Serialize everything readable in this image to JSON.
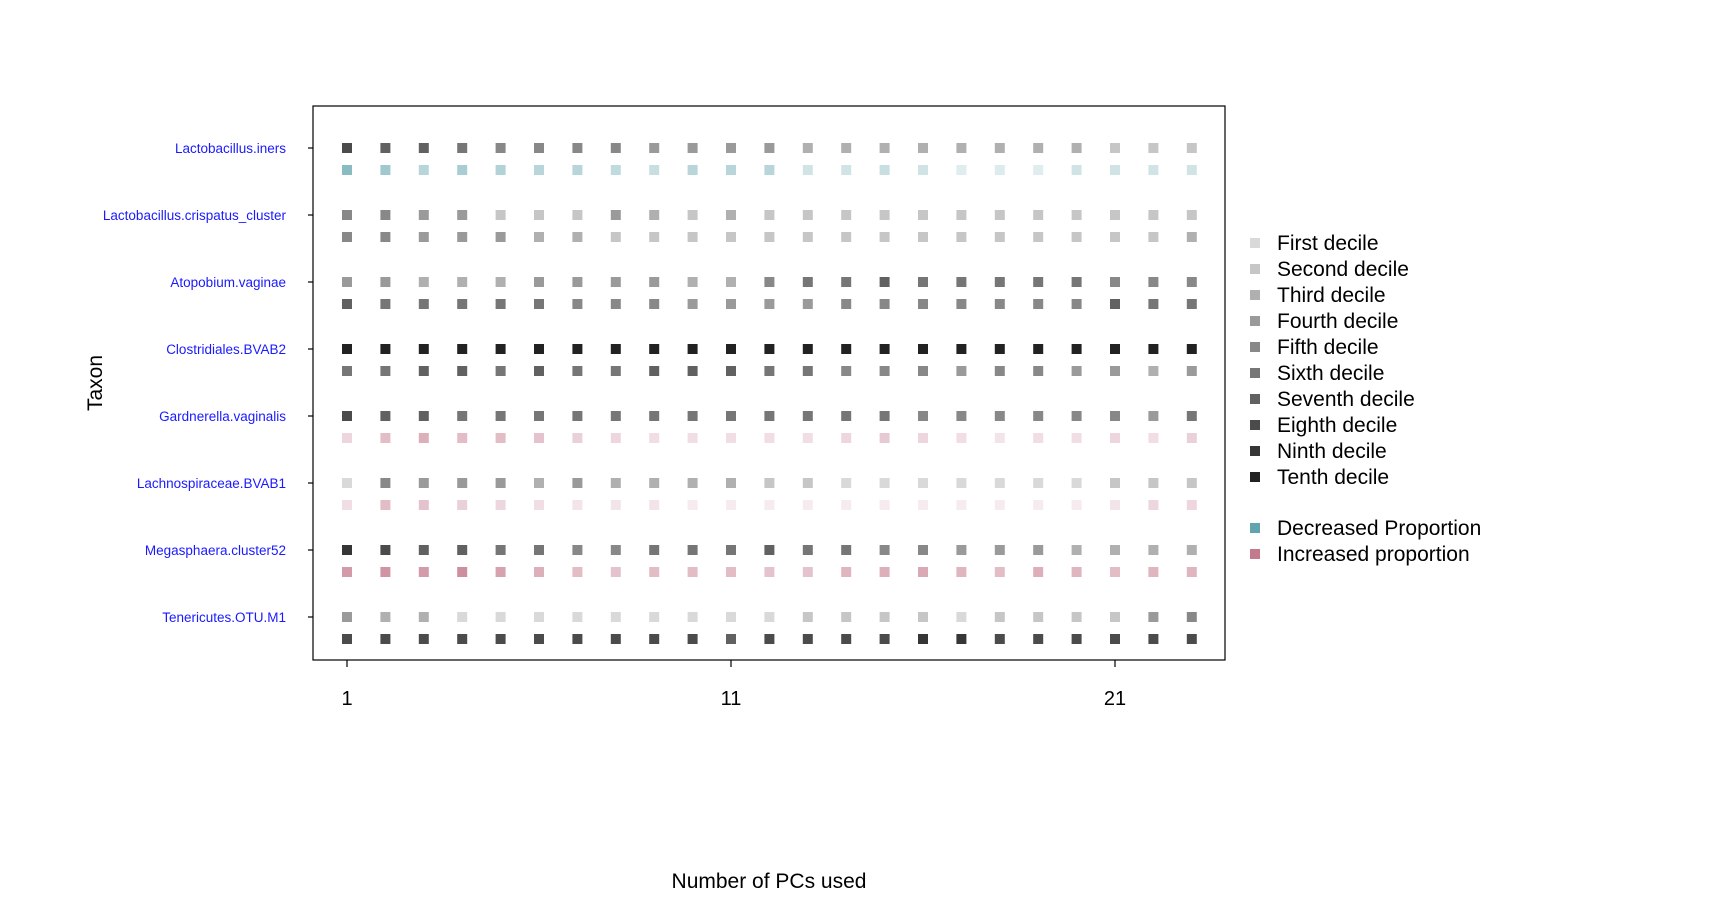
{
  "chart_data": {
    "type": "heatmap",
    "title": "",
    "xlabel": "Number of PCs used",
    "ylabel": "Taxon",
    "x": [
      1,
      2,
      3,
      4,
      5,
      6,
      7,
      8,
      9,
      10,
      11,
      12,
      13,
      14,
      15,
      16,
      17,
      18,
      19,
      20,
      21,
      22,
      23
    ],
    "x_ticks": [
      1,
      11,
      21
    ],
    "taxa": [
      "Lactobacillus.iners",
      "Lactobacillus.crispatus_cluster",
      "Atopobium.vaginae",
      "Clostridiales.BVAB2",
      "Gardnerella.vaginalis",
      "Lachnospiraceae.BVAB1",
      "Megasphaera.cluster52",
      "Tenericutes.OTU.M1"
    ],
    "abundance_deciles": [
      [
        8,
        7,
        7,
        6,
        5,
        5,
        5,
        5,
        4,
        4,
        4,
        4,
        3,
        3,
        3,
        3,
        3,
        3,
        3,
        3,
        2,
        2,
        2
      ],
      [
        5,
        5,
        4,
        4,
        2,
        2,
        2,
        4,
        3,
        2,
        3,
        2,
        2,
        2,
        2,
        2,
        2,
        2,
        2,
        2,
        2,
        2,
        2
      ],
      [
        4,
        4,
        3,
        3,
        3,
        4,
        4,
        4,
        4,
        3,
        3,
        5,
        6,
        6,
        7,
        6,
        6,
        6,
        6,
        6,
        5,
        5,
        5
      ],
      [
        10,
        10,
        10,
        10,
        10,
        10,
        10,
        10,
        10,
        10,
        10,
        10,
        10,
        10,
        10,
        10,
        10,
        10,
        10,
        10,
        10,
        10,
        10
      ],
      [
        8,
        7,
        7,
        6,
        6,
        6,
        6,
        6,
        6,
        6,
        6,
        6,
        6,
        6,
        6,
        5,
        5,
        5,
        5,
        5,
        5,
        4,
        6
      ],
      [
        1,
        5,
        4,
        4,
        4,
        3,
        4,
        3,
        3,
        3,
        3,
        2,
        2,
        1,
        1,
        1,
        1,
        1,
        1,
        1,
        2,
        2,
        2
      ],
      [
        9,
        8,
        7,
        7,
        6,
        6,
        5,
        5,
        6,
        6,
        6,
        7,
        6,
        6,
        5,
        5,
        4,
        4,
        4,
        3,
        3,
        3,
        3
      ],
      [
        4,
        3,
        3,
        1,
        1,
        1,
        1,
        1,
        1,
        1,
        1,
        1,
        2,
        2,
        2,
        2,
        1,
        2,
        2,
        2,
        2,
        4,
        5
      ]
    ],
    "proportion_change": [
      {
        "direction": "decreased",
        "intensity": [
          0.75,
          0.6,
          0.45,
          0.55,
          0.5,
          0.45,
          0.45,
          0.4,
          0.35,
          0.45,
          0.45,
          0.45,
          0.3,
          0.3,
          0.35,
          0.3,
          0.2,
          0.22,
          0.2,
          0.3,
          0.3,
          0.3,
          0.3
        ]
      },
      {
        "direction": "none",
        "deciles": [
          5,
          5,
          4,
          4,
          4,
          3,
          3,
          2,
          2,
          2,
          2,
          2,
          2,
          2,
          2,
          2,
          2,
          2,
          2,
          2,
          2,
          2,
          3
        ]
      },
      {
        "direction": "none",
        "deciles": [
          7,
          6,
          6,
          6,
          6,
          6,
          5,
          5,
          5,
          4,
          4,
          4,
          4,
          5,
          5,
          5,
          5,
          5,
          5,
          5,
          7,
          6,
          6
        ]
      },
      {
        "direction": "none",
        "deciles": [
          6,
          6,
          7,
          7,
          6,
          7,
          6,
          6,
          7,
          7,
          7,
          6,
          6,
          5,
          5,
          5,
          4,
          5,
          5,
          4,
          4,
          3,
          4
        ]
      },
      {
        "direction": "increased",
        "intensity": [
          0.3,
          0.5,
          0.6,
          0.5,
          0.5,
          0.45,
          0.35,
          0.3,
          0.25,
          0.25,
          0.25,
          0.25,
          0.25,
          0.3,
          0.4,
          0.3,
          0.25,
          0.2,
          0.25,
          0.25,
          0.3,
          0.25,
          0.35
        ]
      },
      {
        "direction": "increased",
        "intensity": [
          0.25,
          0.5,
          0.45,
          0.35,
          0.3,
          0.25,
          0.2,
          0.2,
          0.2,
          0.15,
          0.15,
          0.15,
          0.15,
          0.15,
          0.15,
          0.15,
          0.15,
          0.15,
          0.15,
          0.15,
          0.2,
          0.3,
          0.3
        ]
      },
      {
        "direction": "increased",
        "intensity": [
          0.75,
          0.8,
          0.75,
          0.85,
          0.7,
          0.6,
          0.5,
          0.45,
          0.5,
          0.5,
          0.5,
          0.45,
          0.45,
          0.55,
          0.6,
          0.65,
          0.55,
          0.5,
          0.6,
          0.55,
          0.5,
          0.55,
          0.55
        ]
      },
      {
        "direction": "none",
        "deciles": [
          8,
          8,
          8,
          8,
          8,
          8,
          8,
          8,
          8,
          8,
          7,
          8,
          8,
          8,
          8,
          9,
          9,
          8,
          8,
          8,
          8,
          8,
          8
        ]
      }
    ],
    "legend": {
      "placement": "right",
      "decile_labels": [
        "First decile",
        "Second decile",
        "Third decile",
        "Fourth decile",
        "Fifth decile",
        "Sixth decile",
        "Seventh decile",
        "Eighth decile",
        "Ninth decile",
        "Tenth decile"
      ],
      "change_labels": [
        "Decreased Proportion",
        "Increased proportion"
      ]
    },
    "colors": {
      "deciles": [
        "#d9d9d9",
        "#c6c6c6",
        "#b0b0b0",
        "#9a9a9a",
        "#888888",
        "#767676",
        "#616161",
        "#4b4b4b",
        "#363636",
        "#222222"
      ],
      "decreased": "#62a4ad",
      "increased": "#c47a8d",
      "background": "#ffffff"
    },
    "grid": false
  }
}
